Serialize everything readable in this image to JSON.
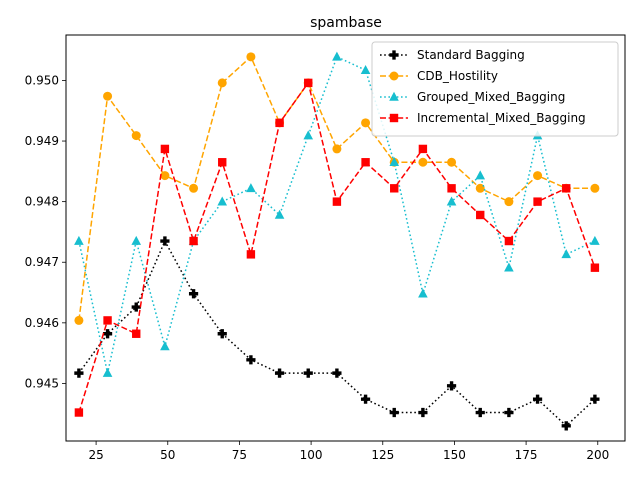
{
  "chart_data": {
    "type": "line",
    "title": "spambase",
    "xlabel": "",
    "ylabel": "",
    "xlim": [
      14.5,
      209.5
    ],
    "ylim": [
      0.94405,
      0.95075
    ],
    "xticks": [
      25,
      50,
      75,
      100,
      125,
      150,
      175,
      200
    ],
    "yticks": [
      0.945,
      0.946,
      0.947,
      0.948,
      0.949,
      0.95
    ],
    "grid": false,
    "legend_position": "top-right",
    "x": [
      19,
      29,
      39,
      49,
      59,
      69,
      79,
      89,
      99,
      109,
      119,
      129,
      139,
      149,
      159,
      169,
      179,
      189,
      199
    ],
    "series": [
      {
        "name": "Standard Bagging",
        "color": "#000000",
        "marker": "plus",
        "linestyle": "dotted",
        "values": [
          0.94517,
          0.94582,
          0.94626,
          0.94735,
          0.94648,
          0.94582,
          0.94539,
          0.94517,
          0.94517,
          0.94517,
          0.94474,
          0.94452,
          0.94452,
          0.94496,
          0.94452,
          0.94452,
          0.94474,
          0.9443,
          0.94474
        ]
      },
      {
        "name": "CDB_Hostility",
        "color": "#ffa500",
        "marker": "circle",
        "linestyle": "dashed",
        "values": [
          0.94604,
          0.94974,
          0.94909,
          0.94843,
          0.94822,
          0.94996,
          0.95039,
          0.9493,
          0.94996,
          0.94887,
          0.9493,
          0.94865,
          0.94865,
          0.94865,
          0.94822,
          0.948,
          0.94843,
          0.94822,
          0.94822
        ]
      },
      {
        "name": "Grouped_Mixed_Bagging",
        "color": "#17becf",
        "marker": "triangle",
        "linestyle": "dotted",
        "values": [
          0.94735,
          0.94517,
          0.94735,
          0.94561,
          0.94735,
          0.948,
          0.94822,
          0.94778,
          0.94909,
          0.95039,
          0.95017,
          0.94865,
          0.94648,
          0.948,
          0.94843,
          0.94691,
          0.94909,
          0.94713,
          0.94735
        ]
      },
      {
        "name": "Incremental_Mixed_Bagging",
        "color": "#ff0000",
        "marker": "square",
        "linestyle": "dashed",
        "values": [
          0.94452,
          0.94604,
          0.94582,
          0.94887,
          0.94735,
          0.94865,
          0.94713,
          0.9493,
          0.94996,
          0.948,
          0.94865,
          0.94822,
          0.94887,
          0.94822,
          0.94778,
          0.94735,
          0.948,
          0.94822,
          0.94691
        ]
      }
    ]
  }
}
